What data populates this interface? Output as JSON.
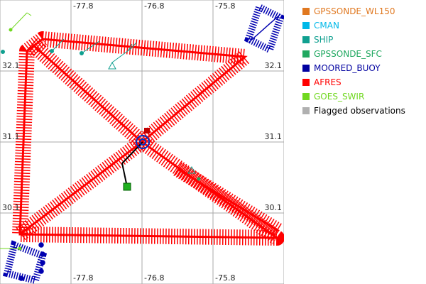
{
  "map": {
    "lon_labels_top": [
      "-77.8",
      "-76.8",
      "-75.8"
    ],
    "lon_labels_bottom": [
      "-77.8",
      "-76.8",
      "-75.8"
    ],
    "lat_labels_left": [
      "32.1",
      "31.1",
      "30.1"
    ],
    "lat_labels_right": [
      "32.1",
      "31.1",
      "30.1"
    ]
  },
  "legend": {
    "items": [
      {
        "label": "GPSSONDE_WL150",
        "color": "#e07820"
      },
      {
        "label": "CMAN",
        "color": "#00b8e8"
      },
      {
        "label": "SHIP",
        "color": "#10a090"
      },
      {
        "label": "GPSSONDE_SFC",
        "color": "#20a860"
      },
      {
        "label": "MOORED_BUOY",
        "color": "#0000a0"
      },
      {
        "label": "AFRES",
        "color": "#ff0000"
      },
      {
        "label": "GOES_SWIR",
        "color": "#70d820"
      },
      {
        "label": "Flagged observations",
        "color": "#b0b0b0"
      }
    ]
  }
}
